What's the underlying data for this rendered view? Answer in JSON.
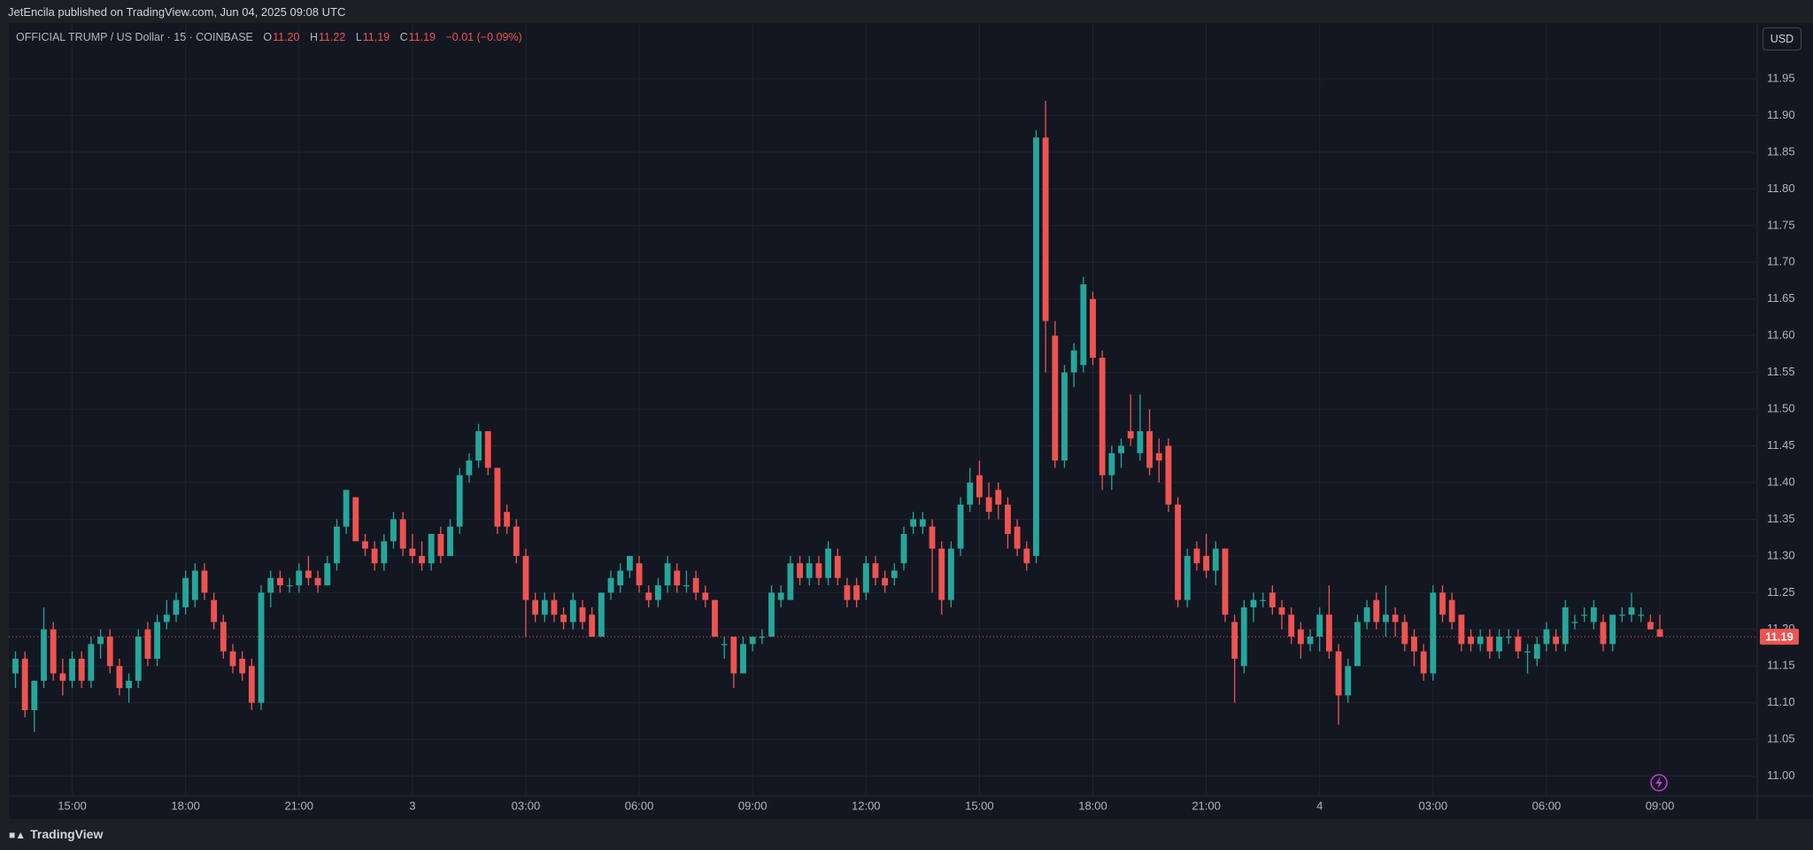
{
  "header": {
    "publisher": "JetEncila published on TradingView.com, Jun 04, 2025 09:08 UTC",
    "brand": "TradingView"
  },
  "chart_data": {
    "type": "candlestick",
    "title": "OFFICIAL TRUMP / US Dollar · 15 · COINBASE",
    "legend": [
      {
        "label": "O",
        "value": "11.20"
      },
      {
        "label": "H",
        "value": "11.22"
      },
      {
        "label": "L",
        "value": "11.19"
      },
      {
        "label": "C",
        "value": "11.19"
      }
    ],
    "change": "−0.01 (−0.09%)",
    "currency": "USD",
    "up_color": "#26a69a",
    "down_color": "#ef5350",
    "open": [
      11.14,
      11.16,
      11.09,
      11.13,
      11.2,
      11.14,
      11.13,
      11.16,
      11.13,
      11.18,
      11.19,
      11.15,
      11.12,
      11.13,
      11.2,
      11.16,
      11.21,
      11.22,
      11.23,
      11.24,
      11.28,
      11.24,
      11.21,
      11.17,
      11.16,
      11.15,
      11.1,
      11.25,
      11.27,
      11.26,
      11.26,
      11.28,
      11.27,
      11.26,
      11.29,
      11.34,
      11.38,
      11.32,
      11.31,
      11.29,
      11.32,
      11.35,
      11.31,
      11.3,
      11.29,
      11.33,
      11.3,
      11.34,
      11.41,
      11.43,
      11.47,
      11.42,
      11.36,
      11.34,
      11.3,
      11.24,
      11.22,
      11.24,
      11.22,
      11.21,
      11.23,
      11.22,
      11.19,
      11.25,
      11.26,
      11.28,
      11.29,
      11.25,
      11.24,
      11.26,
      11.28,
      11.26,
      11.27,
      11.25,
      11.24,
      11.18,
      11.19,
      11.14,
      11.18,
      11.19,
      11.19,
      11.24,
      11.24,
      11.29,
      11.27,
      11.29,
      11.27,
      11.3,
      11.26,
      11.26,
      11.25,
      11.29,
      11.27,
      11.27,
      11.29,
      11.34,
      11.34,
      11.34,
      11.31,
      11.24,
      11.31,
      11.37,
      11.41,
      11.38,
      11.39,
      11.37,
      11.34,
      11.31,
      11.3,
      11.87,
      11.6,
      11.43,
      11.55,
      11.56,
      11.65,
      11.57,
      11.41,
      11.44,
      11.47,
      11.44,
      11.47,
      11.44,
      11.45,
      11.37,
      11.24,
      11.31,
      11.3,
      11.28,
      11.31,
      11.21,
      11.15,
      11.23,
      11.24,
      11.25,
      11.23,
      11.22,
      11.2,
      11.18,
      11.19,
      11.22,
      11.17,
      11.11,
      11.15,
      11.21,
      11.24,
      11.21,
      11.22,
      11.21,
      11.19,
      11.17,
      11.14,
      11.25,
      11.24,
      11.22,
      11.19,
      11.18,
      11.19,
      11.17,
      11.19,
      11.19,
      11.17,
      11.16,
      11.18,
      11.19,
      11.18,
      11.21,
      11.22,
      11.21,
      11.21,
      11.18,
      11.22,
      11.22,
      11.22,
      11.21,
      11.2
    ],
    "high": [
      11.17,
      11.17,
      11.13,
      11.23,
      11.21,
      11.16,
      11.17,
      11.17,
      11.19,
      11.2,
      11.2,
      11.16,
      11.14,
      11.2,
      11.21,
      11.22,
      11.24,
      11.25,
      11.28,
      11.29,
      11.29,
      11.25,
      11.22,
      11.18,
      11.17,
      11.16,
      11.26,
      11.28,
      11.28,
      11.27,
      11.29,
      11.3,
      11.28,
      11.3,
      11.35,
      11.39,
      11.38,
      11.33,
      11.32,
      11.33,
      11.36,
      11.36,
      11.33,
      11.32,
      11.33,
      11.34,
      11.35,
      11.42,
      11.44,
      11.48,
      11.47,
      11.42,
      11.37,
      11.35,
      11.31,
      11.25,
      11.25,
      11.25,
      11.23,
      11.25,
      11.24,
      11.23,
      11.25,
      11.28,
      11.29,
      11.3,
      11.3,
      11.26,
      11.27,
      11.3,
      11.29,
      11.28,
      11.28,
      11.26,
      11.24,
      11.19,
      11.19,
      11.19,
      11.19,
      11.2,
      11.26,
      11.26,
      11.3,
      11.3,
      11.3,
      11.3,
      11.32,
      11.31,
      11.27,
      11.27,
      11.3,
      11.3,
      11.28,
      11.29,
      11.34,
      11.36,
      11.36,
      11.35,
      11.32,
      11.32,
      11.38,
      11.42,
      11.43,
      11.4,
      11.4,
      11.38,
      11.35,
      11.32,
      11.88,
      11.92,
      11.62,
      11.56,
      11.59,
      11.68,
      11.66,
      11.58,
      11.45,
      11.46,
      11.52,
      11.52,
      11.5,
      11.46,
      11.46,
      11.38,
      11.31,
      11.32,
      11.33,
      11.32,
      11.31,
      11.22,
      11.24,
      11.25,
      11.25,
      11.26,
      11.24,
      11.23,
      11.21,
      11.2,
      11.23,
      11.26,
      11.18,
      11.16,
      11.22,
      11.24,
      11.25,
      11.26,
      11.23,
      11.22,
      11.2,
      11.18,
      11.26,
      11.26,
      11.25,
      11.22,
      11.2,
      11.2,
      11.2,
      11.2,
      11.2,
      11.2,
      11.18,
      11.19,
      11.21,
      11.2,
      11.24,
      11.22,
      11.23,
      11.24,
      11.22,
      11.22,
      11.23,
      11.25,
      11.23,
      11.22,
      11.22
    ],
    "low": [
      11.12,
      11.08,
      11.06,
      11.12,
      11.13,
      11.11,
      11.12,
      11.12,
      11.12,
      11.16,
      11.14,
      11.11,
      11.1,
      11.12,
      11.15,
      11.15,
      11.2,
      11.21,
      11.22,
      11.23,
      11.24,
      11.2,
      11.16,
      11.14,
      11.13,
      11.09,
      11.09,
      11.23,
      11.25,
      11.25,
      11.25,
      11.26,
      11.25,
      11.26,
      11.28,
      11.33,
      11.32,
      11.3,
      11.28,
      11.28,
      11.31,
      11.3,
      11.29,
      11.28,
      11.28,
      11.29,
      11.3,
      11.33,
      11.4,
      11.42,
      11.41,
      11.33,
      11.33,
      11.29,
      11.19,
      11.21,
      11.21,
      11.21,
      11.2,
      11.2,
      11.2,
      11.19,
      11.19,
      11.24,
      11.25,
      11.27,
      11.25,
      11.23,
      11.23,
      11.25,
      11.25,
      11.25,
      11.24,
      11.23,
      11.19,
      11.16,
      11.12,
      11.14,
      11.17,
      11.18,
      11.19,
      11.23,
      11.24,
      11.26,
      11.26,
      11.26,
      11.26,
      11.26,
      11.23,
      11.23,
      11.24,
      11.26,
      11.25,
      11.26,
      11.28,
      11.33,
      11.33,
      11.25,
      11.22,
      11.23,
      11.3,
      11.36,
      11.37,
      11.35,
      11.35,
      11.31,
      11.3,
      11.28,
      11.29,
      11.55,
      11.42,
      11.42,
      11.53,
      11.55,
      11.56,
      11.39,
      11.39,
      11.42,
      11.45,
      11.43,
      11.41,
      11.4,
      11.36,
      11.23,
      11.23,
      11.28,
      11.27,
      11.26,
      11.21,
      11.1,
      11.14,
      11.21,
      11.23,
      11.22,
      11.2,
      11.18,
      11.16,
      11.17,
      11.17,
      11.16,
      11.07,
      11.1,
      11.15,
      11.2,
      11.2,
      11.19,
      11.19,
      11.17,
      11.15,
      11.13,
      11.13,
      11.21,
      11.2,
      11.17,
      11.17,
      11.17,
      11.16,
      11.16,
      11.18,
      11.16,
      11.14,
      11.15,
      11.17,
      11.17,
      11.17,
      11.2,
      11.21,
      11.2,
      11.17,
      11.17,
      11.21,
      11.21,
      11.21,
      11.2,
      11.19
    ],
    "close": [
      11.16,
      11.09,
      11.13,
      11.2,
      11.14,
      11.13,
      11.16,
      11.13,
      11.18,
      11.19,
      11.15,
      11.12,
      11.13,
      11.19,
      11.16,
      11.21,
      11.22,
      11.24,
      11.27,
      11.28,
      11.25,
      11.21,
      11.17,
      11.15,
      11.14,
      11.1,
      11.25,
      11.27,
      11.26,
      11.26,
      11.28,
      11.27,
      11.26,
      11.29,
      11.34,
      11.39,
      11.32,
      11.31,
      11.29,
      11.32,
      11.35,
      11.31,
      11.3,
      11.29,
      11.33,
      11.3,
      11.34,
      11.41,
      11.43,
      11.47,
      11.42,
      11.34,
      11.34,
      11.3,
      11.24,
      11.22,
      11.24,
      11.22,
      11.21,
      11.24,
      11.21,
      11.19,
      11.25,
      11.27,
      11.28,
      11.3,
      11.26,
      11.24,
      11.26,
      11.29,
      11.26,
      11.26,
      11.25,
      11.24,
      11.19,
      11.18,
      11.14,
      11.18,
      11.19,
      11.19,
      11.25,
      11.25,
      11.29,
      11.27,
      11.29,
      11.27,
      11.31,
      11.27,
      11.24,
      11.24,
      11.29,
      11.27,
      11.26,
      11.28,
      11.33,
      11.35,
      11.35,
      11.31,
      11.24,
      11.31,
      11.37,
      11.4,
      11.38,
      11.36,
      11.37,
      11.33,
      11.31,
      11.29,
      11.87,
      11.62,
      11.43,
      11.55,
      11.58,
      11.67,
      11.57,
      11.41,
      11.44,
      11.45,
      11.46,
      11.47,
      11.42,
      11.43,
      11.37,
      11.24,
      11.3,
      11.29,
      11.28,
      11.31,
      11.22,
      11.16,
      11.23,
      11.24,
      11.24,
      11.23,
      11.22,
      11.19,
      11.18,
      11.19,
      11.22,
      11.17,
      11.11,
      11.15,
      11.21,
      11.23,
      11.21,
      11.22,
      11.21,
      11.18,
      11.17,
      11.14,
      11.25,
      11.22,
      11.21,
      11.18,
      11.18,
      11.19,
      11.17,
      11.19,
      11.19,
      11.17,
      11.17,
      11.18,
      11.2,
      11.18,
      11.23,
      11.21,
      11.22,
      11.23,
      11.18,
      11.22,
      11.22,
      11.23,
      11.22,
      11.2,
      11.19
    ],
    "xlim": [
      -0.7,
      184.3
    ],
    "xticks": [
      {
        "value": 6,
        "label": "15:00"
      },
      {
        "value": 18,
        "label": "18:00"
      },
      {
        "value": 30,
        "label": "21:00"
      },
      {
        "value": 42,
        "label": "3"
      },
      {
        "value": 54,
        "label": "03:00"
      },
      {
        "value": 66,
        "label": "06:00"
      },
      {
        "value": 78,
        "label": "09:00"
      },
      {
        "value": 90,
        "label": "12:00"
      },
      {
        "value": 102,
        "label": "15:00"
      },
      {
        "value": 114,
        "label": "18:00"
      },
      {
        "value": 126,
        "label": "21:00"
      },
      {
        "value": 138,
        "label": "4"
      },
      {
        "value": 150,
        "label": "03:00"
      },
      {
        "value": 162,
        "label": "06:00"
      },
      {
        "value": 174,
        "label": "09:00"
      }
    ],
    "ylim": [
      10.973,
      12.026
    ],
    "yticks": [
      {
        "value": 11,
        "label": "11.00"
      },
      11.05,
      {
        "value": 11.1,
        "label": "11.10"
      },
      11.15,
      {
        "value": 11.2,
        "label": "11.20"
      },
      11.25,
      {
        "value": 11.3,
        "label": "11.30"
      },
      11.35,
      {
        "value": 11.4,
        "label": "11.40"
      },
      11.45,
      {
        "value": 11.5,
        "label": "11.50"
      },
      11.55,
      {
        "value": 11.6,
        "label": "11.60"
      },
      11.65,
      {
        "value": 11.7,
        "label": "11.70"
      },
      11.75,
      {
        "value": 11.8,
        "label": "11.80"
      },
      11.85,
      {
        "value": 11.9,
        "label": "11.90"
      },
      11.95
    ],
    "grid": true,
    "last_price": {
      "value": 11.19,
      "label": "11.19"
    }
  }
}
